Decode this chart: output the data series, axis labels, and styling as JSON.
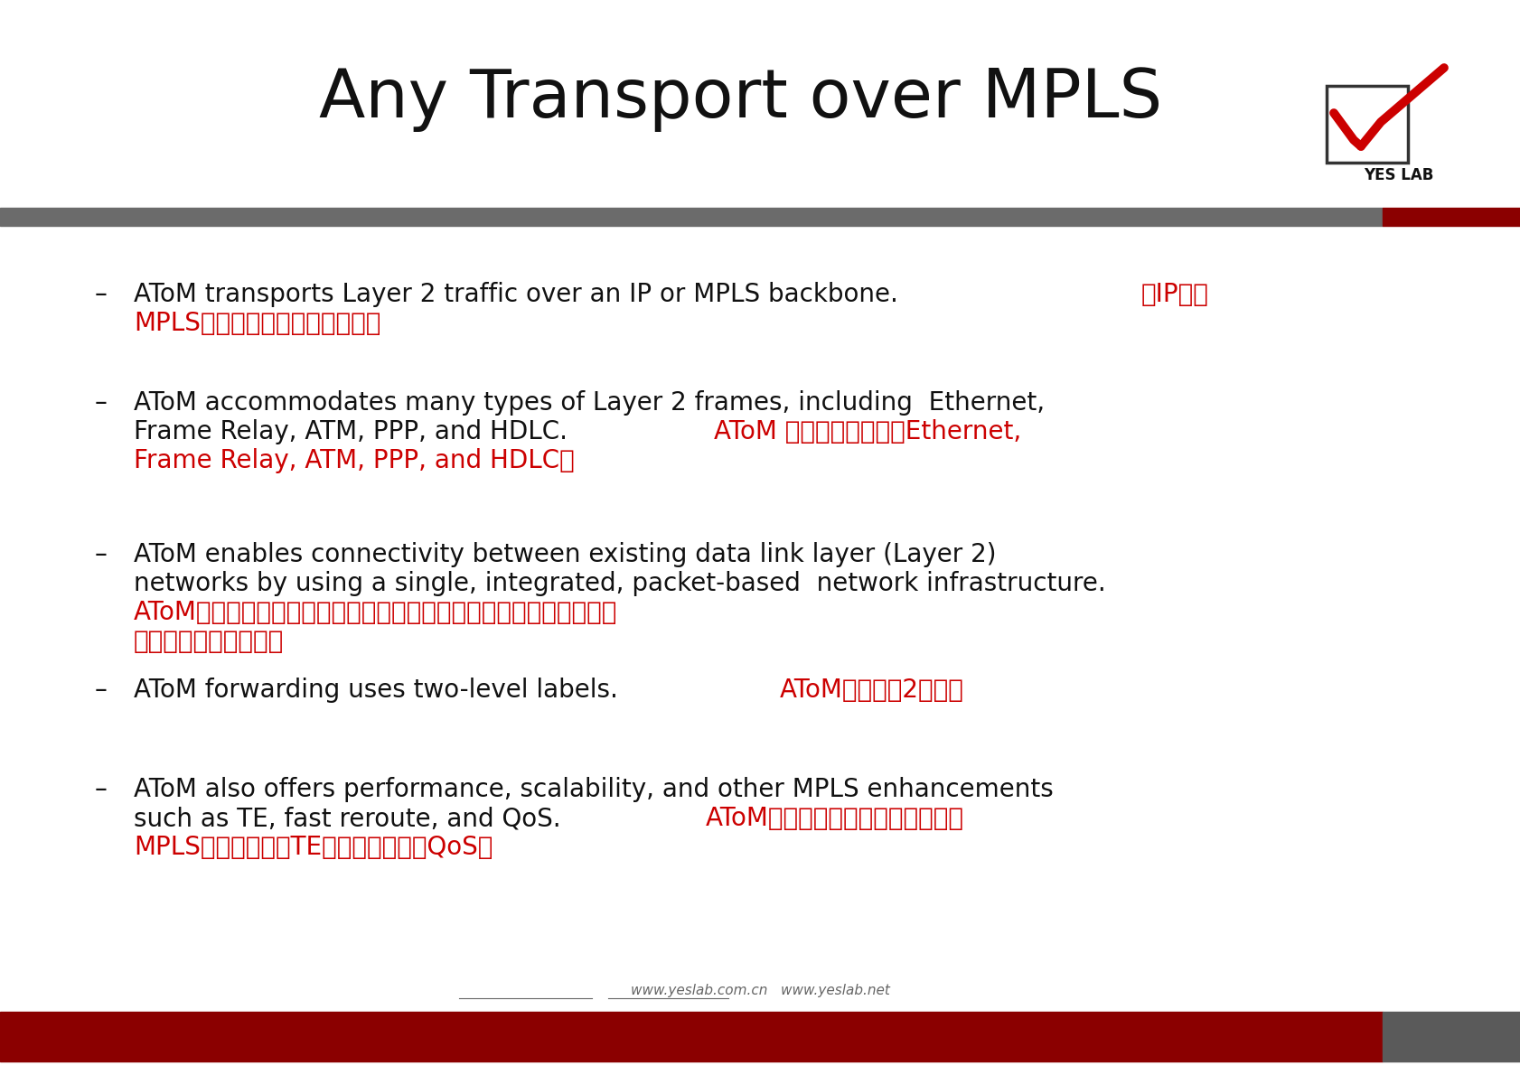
{
  "title": "Any Transport over MPLS",
  "title_fontsize": 54,
  "background_color": "#ffffff",
  "red_color": "#cc0000",
  "dark_red": "#8b0000",
  "gray_bar": "#6b6b6b",
  "gray_box": "#5a5a5a",
  "black": "#111111",
  "footer_text_color": "#666666",
  "bullet_fontsize": 20,
  "footer_text": "www.yeslab.com.cn   www.yeslab.net",
  "bullets": [
    {
      "segments": [
        {
          "text": "AToM transports Layer 2 traffic over an IP or MPLS backbone.  ",
          "color": "#111111"
        },
        {
          "text": "在IP或者",
          "color": "#cc0000"
        }
      ],
      "line2_segments": [
        {
          "text": "MPLS骨干网上传送各种二层流量",
          "color": "#cc0000"
        }
      ]
    },
    {
      "segments": [
        {
          "text": "AToM accommodates many types of Layer 2 frames, including  Ethernet,",
          "color": "#111111"
        }
      ],
      "line2_segments": [
        {
          "text": "Frame Relay, ATM, PPP, and HDLC.  ",
          "color": "#111111"
        },
        {
          "text": "AToM 支持各种二层协议Ethernet,",
          "color": "#cc0000"
        }
      ],
      "line3_segments": [
        {
          "text": "Frame Relay, ATM, PPP, and HDLC。",
          "color": "#cc0000"
        }
      ]
    },
    {
      "segments": [
        {
          "text": "AToM enables connectivity between existing data link layer (Layer 2)",
          "color": "#111111"
        }
      ],
      "line2_segments": [
        {
          "text": "networks by using a single, integrated, packet-based  network infrastructure.",
          "color": "#111111"
        }
      ],
      "line3_segments": [
        {
          "text": "AToM最美妙之处在于能够在单个的基于包交换的网络里提供各种目前",
          "color": "#cc0000"
        }
      ],
      "line4_segments": [
        {
          "text": "使用的二层协议的连接",
          "color": "#cc0000"
        }
      ]
    },
    {
      "segments": [
        {
          "text": "AToM forwarding uses two-level labels.  ",
          "color": "#111111"
        },
        {
          "text": "AToM转发需要2层标签",
          "color": "#cc0000"
        }
      ]
    },
    {
      "segments": [
        {
          "text": "AToM also offers performance, scalability, and other MPLS enhancements",
          "color": "#111111"
        }
      ],
      "line2_segments": [
        {
          "text": "such as TE, fast reroute, and QoS.  ",
          "color": "#111111"
        },
        {
          "text": "AToM还提供性能，可扩展性和其他",
          "color": "#cc0000"
        }
      ],
      "line3_segments": [
        {
          "text": "MPLS增强功能，如TE，快速重路由和QoS。",
          "color": "#cc0000"
        }
      ]
    }
  ]
}
